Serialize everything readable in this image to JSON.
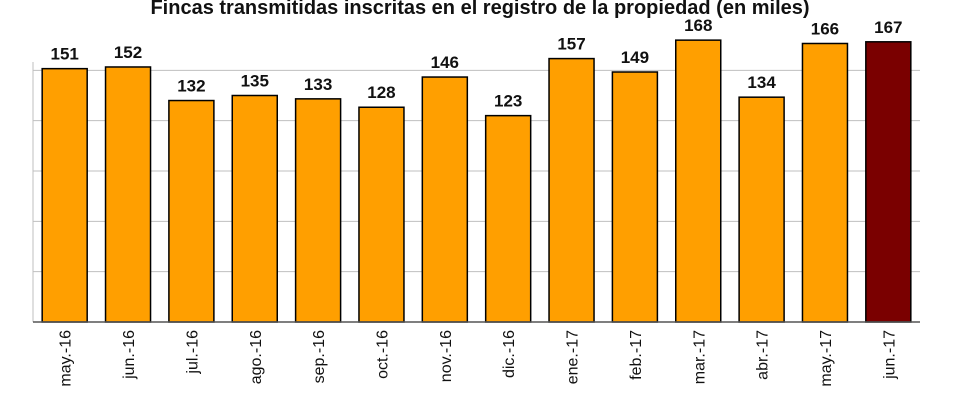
{
  "chart_data": {
    "type": "bar",
    "title": "Fincas transmitidas inscritas en el registro de la propiedad (en miles)",
    "xlabel": "",
    "ylabel": "",
    "categories": [
      "may.-16",
      "jun.-16",
      "jul.-16",
      "ago.-16",
      "sep.-16",
      "oct.-16",
      "nov.-16",
      "dic.-16",
      "ene.-17",
      "feb.-17",
      "mar.-17",
      "abr.-17",
      "may.-17",
      "jun.-17"
    ],
    "values": [
      151,
      152,
      132,
      135,
      133,
      128,
      146,
      123,
      157,
      149,
      168,
      134,
      166,
      167
    ],
    "ylim": [
      0,
      180
    ],
    "grid": true,
    "tick_labels_rotated": true,
    "colors": {
      "bar": "#FF9F00",
      "highlight_bar": "#7A0000",
      "outline": "#000000",
      "grid": "#bfbfbf",
      "label": "#111111"
    },
    "highlight_index": 13
  }
}
